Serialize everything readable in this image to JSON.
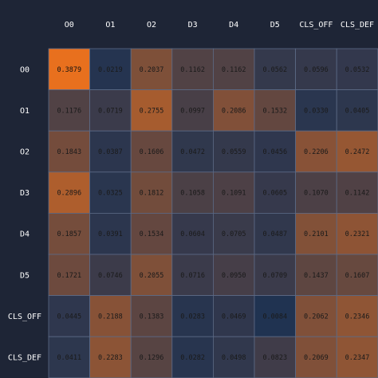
{
  "chart_data": {
    "type": "heatmap",
    "title": "",
    "xlabel": "",
    "ylabel": "",
    "x_labels": [
      "O0",
      "O1",
      "O2",
      "D3",
      "D4",
      "D5",
      "CLS_OFF",
      "CLS_DEF"
    ],
    "y_labels": [
      "O0",
      "O1",
      "O2",
      "D3",
      "D4",
      "D5",
      "CLS_OFF",
      "CLS_DEF"
    ],
    "values": [
      [
        0.3879,
        0.0219,
        0.2037,
        0.1162,
        0.1162,
        0.0562,
        0.0596,
        0.0532
      ],
      [
        0.1176,
        0.0719,
        0.2755,
        0.0997,
        0.2086,
        0.1532,
        0.033,
        0.0405
      ],
      [
        0.1843,
        0.0387,
        0.1606,
        0.0472,
        0.0559,
        0.0456,
        0.2206,
        0.2472
      ],
      [
        0.2896,
        0.0325,
        0.1812,
        0.1058,
        0.1091,
        0.0605,
        0.107,
        0.1142
      ],
      [
        0.1857,
        0.0391,
        0.1534,
        0.0604,
        0.0705,
        0.0487,
        0.2101,
        0.2321
      ],
      [
        0.1721,
        0.0746,
        0.2055,
        0.0716,
        0.095,
        0.0709,
        0.1437,
        0.1607
      ],
      [
        0.0445,
        0.2188,
        0.1383,
        0.0283,
        0.0469,
        0.0084,
        0.2062,
        0.2346
      ],
      [
        0.0411,
        0.2283,
        0.1296,
        0.0282,
        0.0498,
        0.0823,
        0.2069,
        0.2347
      ]
    ],
    "value_range": [
      0,
      0.3879
    ],
    "color_scale": {
      "low": "#1e3252",
      "high": "#e8701e",
      "cell_border": "#5c6a86"
    },
    "colors": {
      "background": "#1e2536",
      "label_text": "#ffffff",
      "value_text_light": "#1a1a1a",
      "value_text_dark": "#111111"
    },
    "grid": true,
    "legend": "none"
  }
}
